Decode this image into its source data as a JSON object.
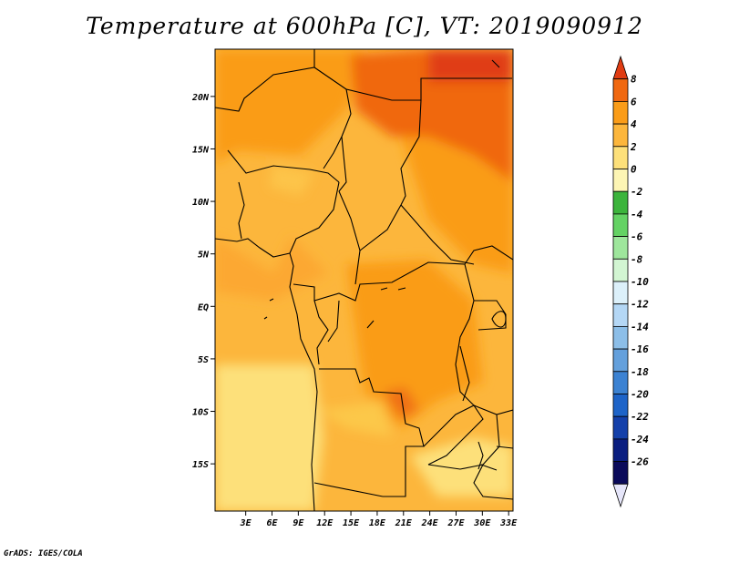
{
  "title": "Temperature at 600hPa [C], VT: 2019090912",
  "credit": "GrADS: IGES/COLA",
  "map": {
    "lat_range": [
      -19.5,
      24.5
    ],
    "lon_range": [
      -0.5,
      33.5
    ],
    "lat_ticks": [
      {
        "value": 20,
        "label": "20N"
      },
      {
        "value": 15,
        "label": "15N"
      },
      {
        "value": 10,
        "label": "10N"
      },
      {
        "value": 5,
        "label": "5N"
      },
      {
        "value": 0,
        "label": "EQ"
      },
      {
        "value": -5,
        "label": "5S"
      },
      {
        "value": -10,
        "label": "10S"
      },
      {
        "value": -15,
        "label": "15S"
      }
    ],
    "lon_ticks": [
      {
        "value": 3,
        "label": "3E"
      },
      {
        "value": 6,
        "label": "6E"
      },
      {
        "value": 9,
        "label": "9E"
      },
      {
        "value": 12,
        "label": "12E"
      },
      {
        "value": 15,
        "label": "15E"
      },
      {
        "value": 18,
        "label": "18E"
      },
      {
        "value": 21,
        "label": "21E"
      },
      {
        "value": 24,
        "label": "24E"
      },
      {
        "value": 27,
        "label": "27E"
      },
      {
        "value": 30,
        "label": "30E"
      },
      {
        "value": 33,
        "label": "33E"
      }
    ]
  },
  "colorbar": {
    "labels": [
      "8",
      "6",
      "4",
      "2",
      "0",
      "-2",
      "-4",
      "-6",
      "-8",
      "-10",
      "-12",
      "-14",
      "-16",
      "-18",
      "-20",
      "-22",
      "-24",
      "-26"
    ],
    "colors": [
      "#e03c12",
      "#f06810",
      "#fa9c18",
      "#fcb63c",
      "#fde07a",
      "#fdf5b4",
      "#3cb43c",
      "#64d264",
      "#9ee69c",
      "#d2f5d2",
      "#dcf0fa",
      "#b4d7f5",
      "#8cbee8",
      "#64a0dc",
      "#3c82d2",
      "#1e64c8",
      "#1440aa",
      "#0a1e80",
      "#0a0a5a",
      "#e6e6fa"
    ]
  }
}
